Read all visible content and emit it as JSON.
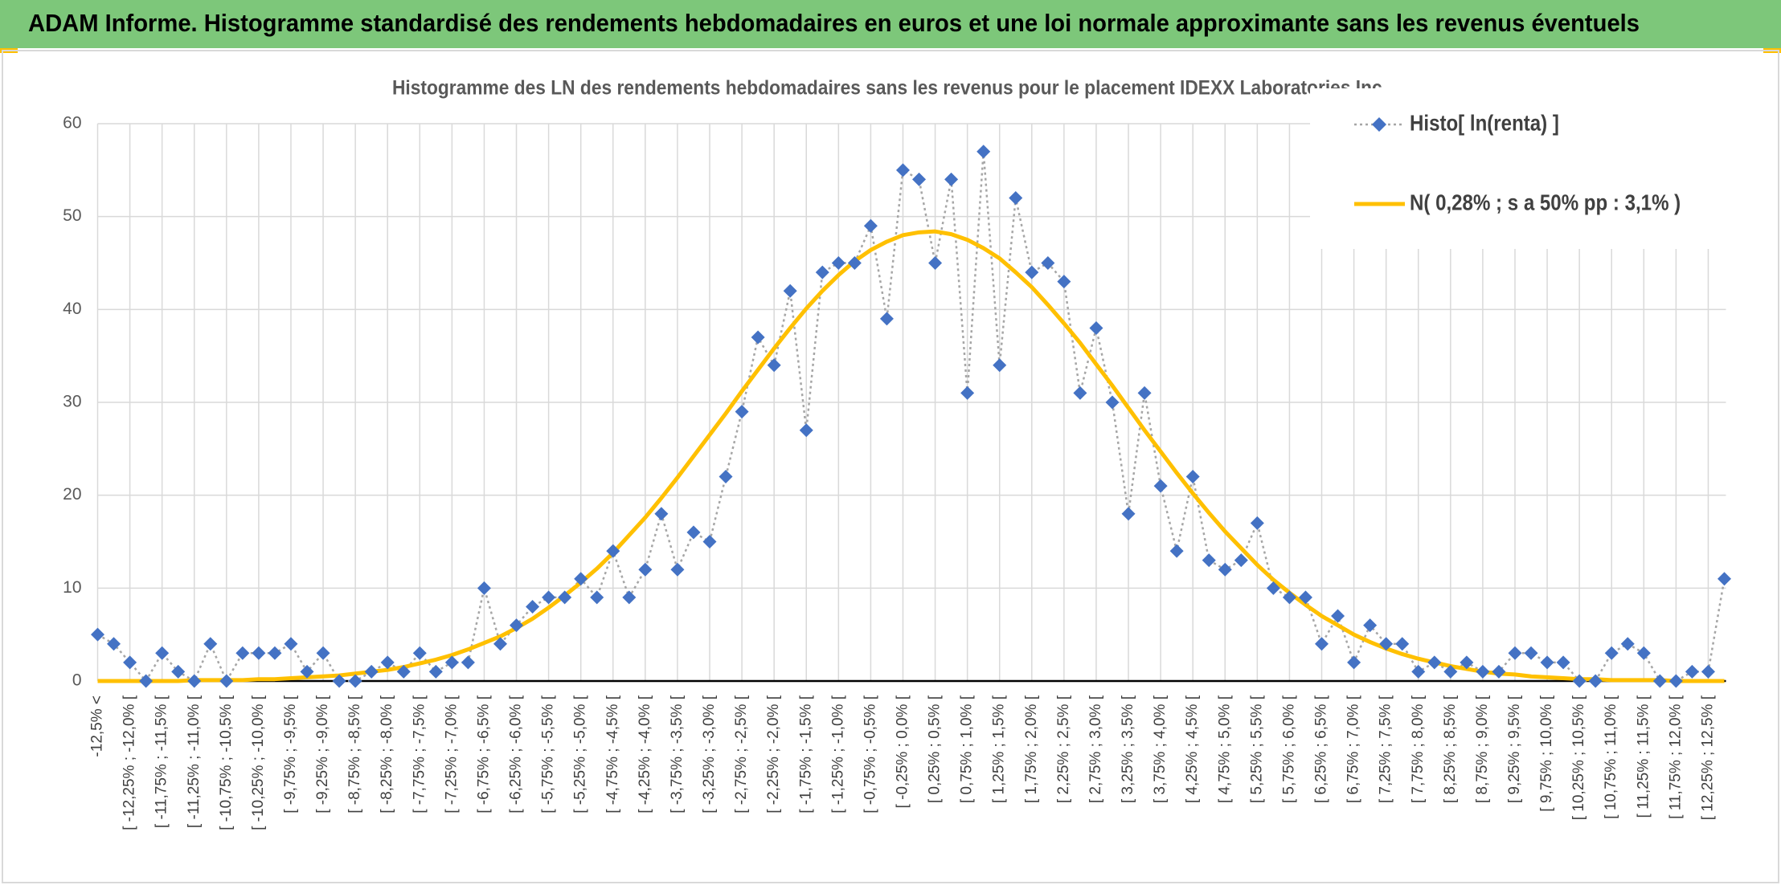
{
  "header": {
    "title": "ADAM Informe. Histogramme standardisé des rendements hebdomadaires en euros et une loi normale approximante sans les revenus éventuels"
  },
  "chart_data": {
    "type": "line",
    "title": "Histogramme des LN des rendements hebdomadaires sans les revenus pour le placement IDEXX Laboratories Inc.",
    "categories": [
      "-12,5% <",
      null,
      "[ -12,25% ; -12,0% [",
      null,
      "[ -11,75% ; -11,5% [",
      null,
      "[ -11,25% ; -11,0% [",
      null,
      "[ -10,75% ; -10,5% [",
      null,
      "[ -10,25% ; -10,0% [",
      null,
      "[ -9,75% ; -9,5% [",
      null,
      "[ -9,25% ; -9,0% [",
      null,
      "[ -8,75% ; -8,5% [",
      null,
      "[ -8,25% ; -8,0% [",
      null,
      "[ -7,75% ; -7,5% [",
      null,
      "[ -7,25% ; -7,0% [",
      null,
      "[ -6,75% ; -6,5% [",
      null,
      "[ -6,25% ; -6,0% [",
      null,
      "[ -5,75% ; -5,5% [",
      null,
      "[ -5,25% ; -5,0% [",
      null,
      "[ -4,75% ; -4,5% [",
      null,
      "[ -4,25% ; -4,0% [",
      null,
      "[ -3,75% ; -3,5% [",
      null,
      "[ -3,25% ; -3,0% [",
      null,
      "[ -2,75% ; -2,5% [",
      null,
      "[ -2,25% ; -2,0% [",
      null,
      "[ -1,75% ; -1,5% [",
      null,
      "[ -1,25% ; -1,0% [",
      null,
      "[ -0,75% ; -0,5% [",
      null,
      "[ -0,25% ; 0,0% [",
      null,
      "[ 0,25% ; 0,5% [",
      null,
      "[ 0,75% ; 1,0% [",
      null,
      "[ 1,25% ; 1,5% [",
      null,
      "[ 1,75% ; 2,0% [",
      null,
      "[ 2,25% ; 2,5% [",
      null,
      "[ 2,75% ; 3,0% [",
      null,
      "[ 3,25% ; 3,5% [",
      null,
      "[ 3,75% ; 4,0% [",
      null,
      "[ 4,25% ; 4,5% [",
      null,
      "[ 4,75% ; 5,0% [",
      null,
      "[ 5,25% ; 5,5% [",
      null,
      "[ 5,75% ; 6,0% [",
      null,
      "[ 6,25% ; 6,5% [",
      null,
      "[ 6,75% ; 7,0% [",
      null,
      "[ 7,25% ; 7,5% [",
      null,
      "[ 7,75% ; 8,0% [",
      null,
      "[ 8,25% ; 8,5% [",
      null,
      "[ 8,75% ; 9,0% [",
      null,
      "[ 9,25% ; 9,5% [",
      null,
      "[ 9,75% ; 10,0% [",
      null,
      "[ 10,25% ; 10,5% [",
      null,
      "[ 10,75% ; 11,0% [",
      null,
      "[ 11,25% ; 11,5% [",
      null,
      "[ 11,75% ; 12,0% [",
      null,
      "[ 12,25% ; 12,5% [",
      null
    ],
    "series": [
      {
        "name": "Histo[ ln(renta) ]",
        "color": "#4472c4",
        "line_color": "#a6a6a6",
        "line_style": "dotted",
        "marker": "diamond",
        "values": [
          5,
          4,
          2,
          0,
          3,
          1,
          0,
          4,
          0,
          3,
          3,
          3,
          4,
          1,
          3,
          0,
          0,
          1,
          2,
          1,
          3,
          1,
          2,
          2,
          10,
          4,
          6,
          8,
          9,
          9,
          11,
          9,
          14,
          9,
          12,
          18,
          12,
          16,
          15,
          22,
          29,
          37,
          34,
          42,
          27,
          44,
          45,
          45,
          49,
          39,
          55,
          54,
          45,
          54,
          31,
          57,
          34,
          52,
          44,
          45,
          43,
          31,
          38,
          30,
          18,
          31,
          21,
          14,
          22,
          13,
          12,
          13,
          17,
          10,
          9,
          9,
          4,
          7,
          2,
          6,
          4,
          4,
          1,
          2,
          1,
          2,
          1,
          1,
          3,
          3,
          2,
          2,
          0,
          0,
          3,
          4,
          3,
          0,
          0,
          1,
          1,
          11
        ]
      },
      {
        "name": "N( 0,28% ; s a 50% pp : 3,1% )",
        "color": "#ffc000",
        "line_style": "solid",
        "marker": "none",
        "values": [
          0,
          0,
          0,
          0,
          0,
          0,
          0.1,
          0.1,
          0.1,
          0.1,
          0.2,
          0.2,
          0.3,
          0.4,
          0.5,
          0.6,
          0.8,
          1.0,
          1.2,
          1.5,
          1.9,
          2.3,
          2.8,
          3.4,
          4.1,
          4.8,
          5.7,
          6.7,
          7.9,
          9.2,
          10.6,
          12.1,
          13.8,
          15.7,
          17.6,
          19.7,
          21.9,
          24.2,
          26.5,
          28.8,
          31.2,
          33.5,
          35.8,
          38.0,
          40.1,
          42.0,
          43.7,
          45.2,
          46.4,
          47.3,
          48.0,
          48.3,
          48.4,
          48.1,
          47.5,
          46.6,
          45.5,
          44.0,
          42.4,
          40.5,
          38.5,
          36.4,
          34.1,
          31.8,
          29.4,
          27.0,
          24.7,
          22.4,
          20.2,
          18.1,
          16.1,
          14.3,
          12.5,
          10.9,
          9.5,
          8.2,
          7.0,
          6.0,
          5.0,
          4.2,
          3.5,
          2.9,
          2.4,
          2.0,
          1.6,
          1.3,
          1.0,
          0.8,
          0.7,
          0.5,
          0.4,
          0.3,
          0.2,
          0.2,
          0.1,
          0.1,
          0.1,
          0.1,
          0,
          0,
          0,
          0
        ]
      }
    ],
    "ylim": [
      0,
      60
    ],
    "yticks": [
      0,
      10,
      20,
      30,
      40,
      50,
      60
    ],
    "grid": true,
    "legend": "top-right"
  }
}
